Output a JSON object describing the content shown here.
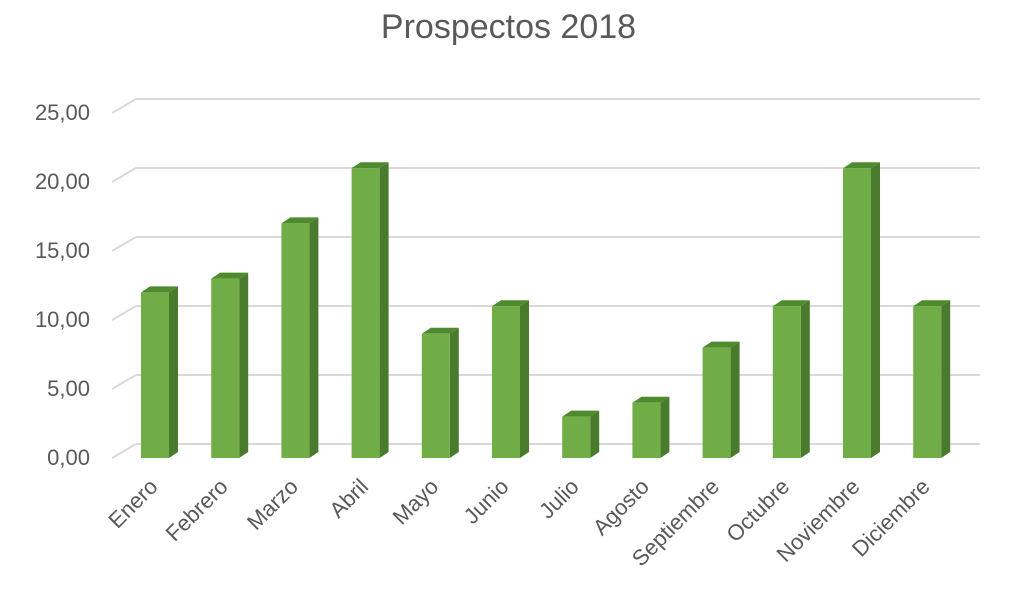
{
  "chart_data": {
    "type": "bar",
    "title": "Prospectos 2018",
    "categories": [
      "Enero",
      "Febrero",
      "Marzo",
      "Abril",
      "Mayo",
      "Junio",
      "Julio",
      "Agosto",
      "Septiembre",
      "Octubre",
      "Noviembre",
      "Diciembre"
    ],
    "values": [
      12,
      13,
      17,
      21,
      9,
      11,
      3,
      4,
      8,
      11,
      21,
      11
    ],
    "ylim": [
      0,
      25
    ],
    "yticks": [
      "0,00",
      "5,00",
      "10,00",
      "15,00",
      "20,00",
      "25,00"
    ],
    "grid": true,
    "style": "3d-column",
    "colors": {
      "front": "#70AD47",
      "top": "#4E8A2E",
      "side": "#4A7A2C",
      "grid": "#D9D9D9",
      "text": "#595959"
    }
  }
}
